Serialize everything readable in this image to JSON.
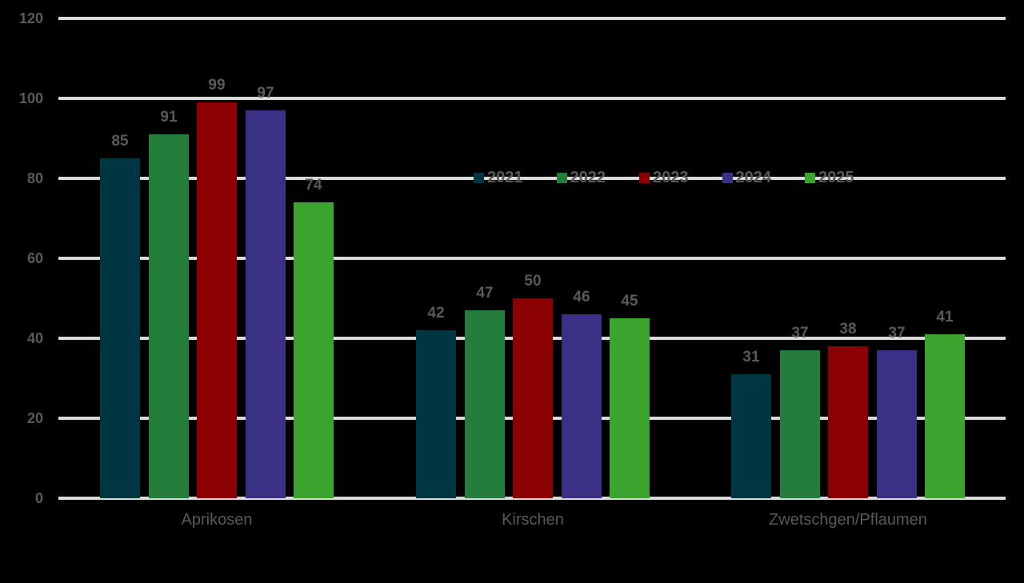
{
  "chart_data": {
    "type": "bar",
    "title": "",
    "xlabel": "",
    "ylabel": "",
    "ylim": [
      0,
      120
    ],
    "yticks": [
      0,
      20,
      40,
      60,
      80,
      100,
      120
    ],
    "grid": true,
    "legend_position": "inside-top-center",
    "categories": [
      "Aprikosen",
      "Kirschen",
      "Zwetschgen/Pflaumen"
    ],
    "series": [
      {
        "name": "2021",
        "color": "#003641",
        "values": [
          85,
          42,
          31
        ]
      },
      {
        "name": "2022",
        "color": "#257d3b",
        "values": [
          91,
          47,
          37
        ]
      },
      {
        "name": "2023",
        "color": "#8b0000",
        "values": [
          99,
          50,
          38
        ]
      },
      {
        "name": "2024",
        "color": "#3a3186",
        "values": [
          97,
          46,
          37
        ]
      },
      {
        "name": "2025",
        "color": "#3aa42e",
        "values": [
          74,
          45,
          41
        ]
      }
    ]
  },
  "yticks_labels": [
    "0",
    "20",
    "40",
    "60",
    "80",
    "100",
    "120"
  ],
  "legend": {
    "items": [
      {
        "label": "2021",
        "color": "#003641"
      },
      {
        "label": "2022",
        "color": "#257d3b"
      },
      {
        "label": "2023",
        "color": "#8b0000"
      },
      {
        "label": "2024",
        "color": "#3a3186"
      },
      {
        "label": "2025",
        "color": "#3aa42e"
      }
    ]
  },
  "labels": {
    "aprikosen": [
      "85",
      "91",
      "99",
      "97",
      "74"
    ],
    "kirschen": [
      "42",
      "47",
      "50",
      "46",
      "45"
    ],
    "zwetschgen": [
      "31",
      "37",
      "38",
      "37",
      "41"
    ]
  }
}
